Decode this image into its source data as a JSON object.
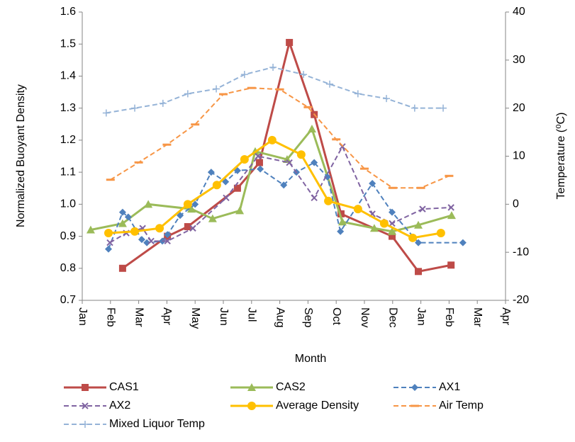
{
  "chart_data": {
    "type": "line",
    "xlabel": "Month",
    "ylabel": "Normalized Buoyant Density",
    "y2label": "Temperature (⁰C)",
    "xlim": [
      0,
      15
    ],
    "xticks": [
      {
        "value": 0,
        "label": "Jan"
      },
      {
        "value": 1,
        "label": "Feb"
      },
      {
        "value": 2,
        "label": "Mar"
      },
      {
        "value": 3,
        "label": "Apr"
      },
      {
        "value": 4,
        "label": "May"
      },
      {
        "value": 5,
        "label": "Jun"
      },
      {
        "value": 6,
        "label": "Jul"
      },
      {
        "value": 7,
        "label": "Aug"
      },
      {
        "value": 8,
        "label": "Sep"
      },
      {
        "value": 9,
        "label": "Oct"
      },
      {
        "value": 10,
        "label": "Nov"
      },
      {
        "value": 11,
        "label": "Dec"
      },
      {
        "value": 12,
        "label": "Jan"
      },
      {
        "value": 13,
        "label": "Feb"
      },
      {
        "value": 14,
        "label": "Mar"
      },
      {
        "value": 15,
        "label": "Apr"
      }
    ],
    "ylim": [
      0.7,
      1.6
    ],
    "yticks": [
      0.7,
      0.8,
      0.9,
      {
        "value": 1,
        "label": "1.0"
      },
      1.1,
      1.2,
      1.3,
      1.4,
      1.5,
      1.6
    ],
    "y2lim": [
      -20,
      40
    ],
    "y2ticks": [
      -20,
      -10,
      0,
      10,
      20,
      30,
      40
    ],
    "grid": false,
    "legend": "bottom",
    "series": [
      {
        "name": "CAS1",
        "color": "#be4b48",
        "marker": "square",
        "dashed": false,
        "x": [
          1.43,
          3.02,
          3.74,
          5.5,
          6.28,
          7.34,
          8.22,
          9.17,
          10.98,
          11.91,
          13.07
        ],
        "values": [
          0.8,
          0.9,
          0.93,
          1.05,
          1.13,
          1.505,
          1.28,
          0.97,
          0.9,
          0.79,
          0.81
        ]
      },
      {
        "name": "CAS2",
        "color": "#9bbb59",
        "marker": "triangle",
        "dashed": false,
        "x": [
          0.3,
          1.43,
          2.34,
          3.87,
          4.62,
          5.58,
          6.13,
          7.26,
          8.14,
          9.22,
          10.35,
          10.98,
          11.91,
          13.09
        ],
        "values": [
          0.92,
          0.94,
          1.0,
          0.985,
          0.955,
          0.98,
          1.165,
          1.14,
          1.235,
          0.945,
          0.925,
          0.915,
          0.935,
          0.965
        ]
      },
      {
        "name": "AX1",
        "color": "#4f81bd",
        "marker": "diamond",
        "dashed": true,
        "x": [
          0.93,
          1.43,
          1.63,
          2.11,
          2.29,
          2.84,
          3.02,
          3.47,
          4.0,
          4.57,
          5.08,
          5.5,
          6.31,
          7.14,
          7.59,
          8.22,
          8.69,
          9.15,
          10.28,
          10.98,
          11.91,
          13.49
        ],
        "values": [
          0.86,
          0.975,
          0.96,
          0.89,
          0.88,
          0.885,
          0.905,
          0.965,
          1.0,
          1.1,
          1.07,
          1.105,
          1.11,
          1.06,
          1.1,
          1.13,
          1.085,
          0.915,
          1.065,
          0.975,
          0.88,
          0.88
        ]
      },
      {
        "name": "AX2",
        "color": "#8064a2",
        "marker": "x",
        "dashed": true,
        "x": [
          0.98,
          1.56,
          2.14,
          2.44,
          3.02,
          3.92,
          5.1,
          6.23,
          7.34,
          8.22,
          9.22,
          10.28,
          10.98,
          12.06,
          13.07
        ],
        "values": [
          0.88,
          0.91,
          0.925,
          0.885,
          0.885,
          0.925,
          1.02,
          1.15,
          1.13,
          1.02,
          1.18,
          0.97,
          0.94,
          0.985,
          0.99
        ]
      },
      {
        "name": "Average Density",
        "color": "#ffc000",
        "marker": "circle",
        "dashed": false,
        "x": [
          0.93,
          1.86,
          2.74,
          3.74,
          4.77,
          5.75,
          6.73,
          7.76,
          8.72,
          9.77,
          10.7,
          11.71,
          12.71
        ],
        "values": [
          0.91,
          0.915,
          0.925,
          1.0,
          1.06,
          1.14,
          1.2,
          1.155,
          1.01,
          0.985,
          0.94,
          0.895,
          0.91
        ]
      },
      {
        "name": "Air Temp",
        "color": "#f79646",
        "marker": "dash",
        "dashed": true,
        "axis": "y2",
        "x": [
          1,
          2,
          3,
          4,
          5,
          6,
          7,
          8,
          9,
          10,
          11,
          12,
          13
        ],
        "values": [
          5.1,
          8.7,
          12.4,
          16.6,
          22.9,
          24.2,
          23.9,
          20.2,
          13.5,
          7.4,
          3.4,
          3.4,
          5.9
        ]
      },
      {
        "name": "Mixed Liquor Temp",
        "color": "#95b3d7",
        "marker": "plus",
        "dashed": true,
        "axis": "y2",
        "x": [
          0.85,
          1.86,
          2.86,
          3.74,
          4.75,
          5.75,
          6.76,
          7.84,
          8.77,
          9.77,
          10.78,
          11.78,
          12.79
        ],
        "values": [
          19,
          20,
          21,
          23,
          24,
          27,
          28.5,
          27,
          25,
          23,
          22,
          20,
          20
        ]
      }
    ]
  }
}
